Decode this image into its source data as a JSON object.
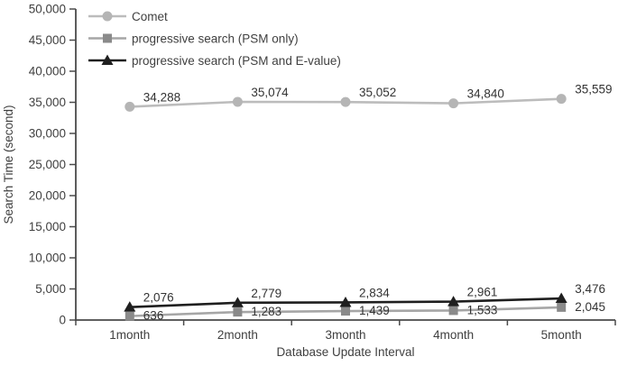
{
  "figure": {
    "background": "#ffffff"
  },
  "chart_data": {
    "type": "line",
    "title": "",
    "xlabel": "Database Update Interval",
    "ylabel": "Search Time (second)",
    "categories": [
      "1month",
      "2month",
      "3month",
      "4month",
      "5month"
    ],
    "series": [
      {
        "name": "Comet",
        "values": [
          34288,
          35074,
          35052,
          34840,
          35559
        ],
        "labels": [
          "34,288",
          "35,074",
          "35,052",
          "34,840",
          "35,559"
        ],
        "color": "#bcbcbc",
        "marker_color": "#b5b5b5",
        "marker": "circle",
        "label_placement": "above"
      },
      {
        "name": "progressive search (PSM only)",
        "values": [
          636,
          1283,
          1439,
          1533,
          2045
        ],
        "labels": [
          "636",
          "1,283",
          "1,439",
          "1,533",
          "2,045"
        ],
        "color": "#a6a6a6",
        "marker_color": "#8a8a8a",
        "marker": "square",
        "label_placement": "inline"
      },
      {
        "name": "progressive search (PSM and E-value)",
        "values": [
          2076,
          2779,
          2834,
          2961,
          3476
        ],
        "labels": [
          "2,076",
          "2,779",
          "2,834",
          "2,961",
          "3,476"
        ],
        "color": "#1f1f1f",
        "marker_color": "#1f1f1f",
        "marker": "triangle",
        "label_placement": "above"
      }
    ],
    "ylim": [
      0,
      50000
    ],
    "ytick_step": 5000,
    "ytick_labels": [
      "0",
      "5,000",
      "10,000",
      "15,000",
      "20,000",
      "25,000",
      "30,000",
      "35,000",
      "40,000",
      "45,000",
      "50,000"
    ],
    "grid": false,
    "legend_position": "top-left",
    "axis_color": "#4a4a4a",
    "text_color": "#404040",
    "data_label_color": "#333333"
  }
}
